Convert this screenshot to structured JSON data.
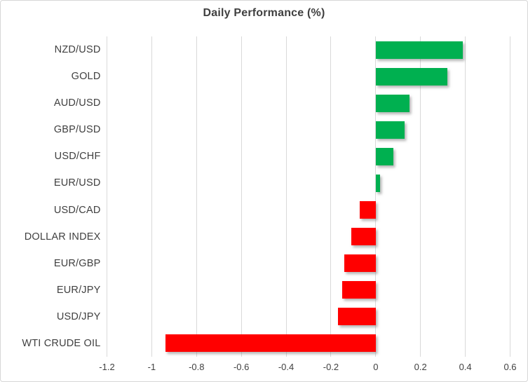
{
  "chart_data": {
    "type": "bar",
    "orientation": "horizontal",
    "title": "Daily Performance (%)",
    "categories": [
      "NZD/USD",
      "GOLD",
      "AUD/USD",
      "GBP/USD",
      "USD/CHF",
      "EUR/USD",
      "USD/CAD",
      "DOLLAR INDEX",
      "EUR/GBP",
      "EUR/JPY",
      "USD/JPY",
      "WTI CRUDE OIL"
    ],
    "values": [
      0.39,
      0.32,
      0.15,
      0.13,
      0.08,
      0.02,
      -0.07,
      -0.11,
      -0.14,
      -0.15,
      -0.17,
      -0.94
    ],
    "xlabel": "",
    "ylabel": "",
    "xlim": [
      -1.2,
      0.6
    ],
    "xticks": [
      -1.2,
      -1,
      -0.8,
      -0.6,
      -0.4,
      -0.2,
      0,
      0.2,
      0.4,
      0.6
    ],
    "xtick_labels": [
      "-1.2",
      "-1",
      "-0.8",
      "-0.6",
      "-0.4",
      "-0.2",
      "0",
      "0.2",
      "0.4",
      "0.6"
    ],
    "grid": true,
    "legend": false,
    "positive_color": "#00B050",
    "negative_color": "#FF0000",
    "gridline_color": "#D9D9D9",
    "text_color": "#404040",
    "title_color": "#404040",
    "background_color": "#FFFFFF"
  }
}
